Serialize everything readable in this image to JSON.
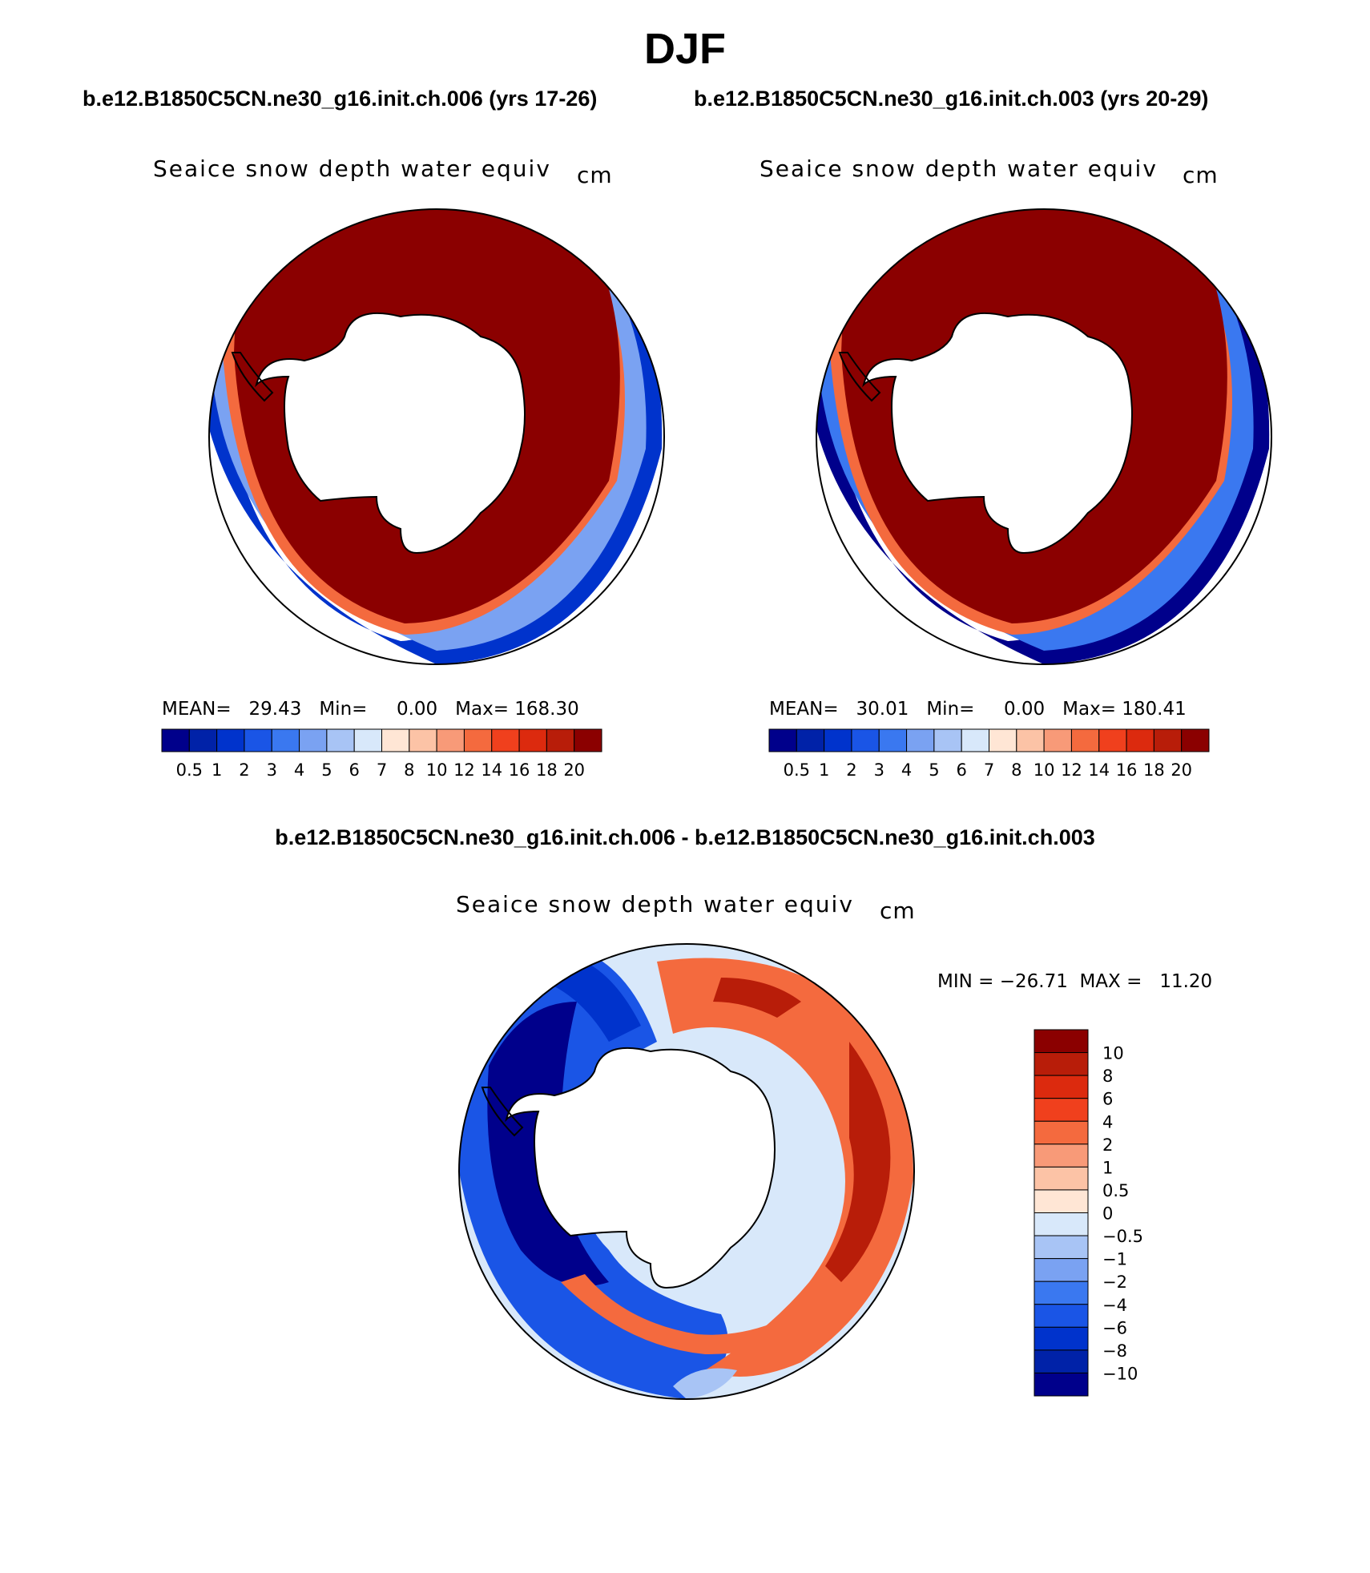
{
  "figure": {
    "season": "DJF",
    "case_left": "b.e12.B1850C5CN.ne30_g16.init.ch.006 (yrs 17-26)",
    "case_right": "b.e12.B1850C5CN.ne30_g16.init.ch.003 (yrs 20-29)",
    "diff_title": "b.e12.B1850C5CN.ne30_g16.init.ch.006 - b.e12.B1850C5CN.ne30_g16.init.ch.003"
  },
  "panels": {
    "left": {
      "variable": "Seaice snow depth water equiv",
      "units": "cm",
      "mean_label": "MEAN=",
      "mean": "29.43",
      "min_label": "Min=",
      "min": "0.00",
      "max_label": "Max=",
      "max": "168.30"
    },
    "right": {
      "variable": "Seaice snow depth water equiv",
      "units": "cm",
      "mean_label": "MEAN=",
      "mean": "30.01",
      "min_label": "Min=",
      "min": "0.00",
      "max_label": "Max=",
      "max": "180.41"
    },
    "diff": {
      "variable": "Seaice snow depth water equiv",
      "units": "cm",
      "minmax_text": "MIN = −26.71  MAX =   11.20"
    }
  },
  "chart_data": [
    {
      "type": "heatmap",
      "name": "left-panel",
      "title": "Seaice snow depth water equiv",
      "units": "cm",
      "projection": "south polar stereographic",
      "levels": [
        "0.5",
        "1",
        "2",
        "3",
        "4",
        "5",
        "6",
        "7",
        "8",
        "10",
        "12",
        "14",
        "16",
        "18",
        "20"
      ],
      "colors": [
        "#00008b",
        "#0022a8",
        "#0033cc",
        "#1a55e6",
        "#3a78f0",
        "#7aa2f2",
        "#a8c4f5",
        "#d8e8fa",
        "#ffe6d5",
        "#fcc3a6",
        "#f89a78",
        "#f46a3e",
        "#f0401d",
        "#dc2a0e",
        "#b81d09",
        "#8b0000"
      ],
      "stats": {
        "mean": 29.43,
        "min": 0.0,
        "max": 168.3
      }
    },
    {
      "type": "heatmap",
      "name": "right-panel",
      "title": "Seaice snow depth water equiv",
      "units": "cm",
      "projection": "south polar stereographic",
      "levels": [
        "0.5",
        "1",
        "2",
        "3",
        "4",
        "5",
        "6",
        "7",
        "8",
        "10",
        "12",
        "14",
        "16",
        "18",
        "20"
      ],
      "colors": [
        "#00008b",
        "#0022a8",
        "#0033cc",
        "#1a55e6",
        "#3a78f0",
        "#7aa2f2",
        "#a8c4f5",
        "#d8e8fa",
        "#ffe6d5",
        "#fcc3a6",
        "#f89a78",
        "#f46a3e",
        "#f0401d",
        "#dc2a0e",
        "#b81d09",
        "#8b0000"
      ],
      "stats": {
        "mean": 30.01,
        "min": 0.0,
        "max": 180.41
      }
    },
    {
      "type": "heatmap",
      "name": "difference-panel",
      "title": "Seaice snow depth water equiv",
      "units": "cm",
      "projection": "south polar stereographic",
      "levels": [
        "10",
        "8",
        "6",
        "4",
        "2",
        "1",
        "0.5",
        "0",
        "−0.5",
        "−1",
        "−2",
        "−4",
        "−6",
        "−8",
        "−10"
      ],
      "colors": [
        "#8b0000",
        "#b81d09",
        "#dc2a0e",
        "#f0401d",
        "#f46a3e",
        "#f89a78",
        "#fcc3a6",
        "#ffe6d5",
        "#d8e8fa",
        "#a8c4f5",
        "#7aa2f2",
        "#3a78f0",
        "#1a55e6",
        "#0033cc",
        "#0022a8",
        "#00008b"
      ],
      "stats": {
        "min": -26.71,
        "max": 11.2
      }
    }
  ]
}
